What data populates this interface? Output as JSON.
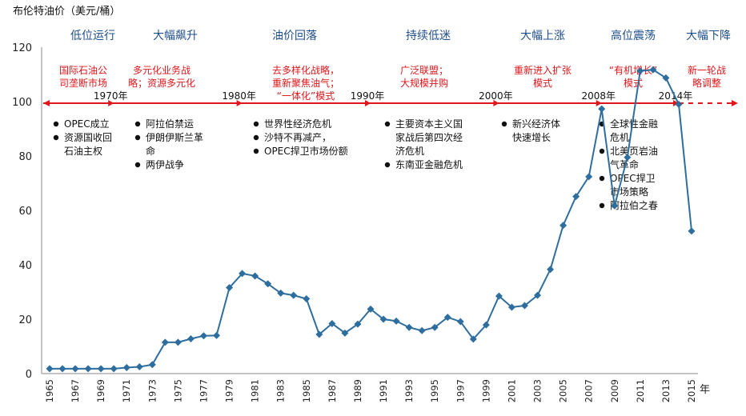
{
  "chart_data": {
    "type": "line",
    "title": "布伦特油价（美元/桶）",
    "x_unit": "年",
    "ylim": [
      0,
      120
    ],
    "yticks": [
      0,
      20,
      40,
      60,
      80,
      100,
      120
    ],
    "x_tick_labels": [
      "1965",
      "1967",
      "1969",
      "1971",
      "1973",
      "1975",
      "1977",
      "1979",
      "1981",
      "1983",
      "1985",
      "1987",
      "1989",
      "1991",
      "1993",
      "1995",
      "1997",
      "1999",
      "2001",
      "2003",
      "2005",
      "2007",
      "2009",
      "2011",
      "2013",
      "2015"
    ],
    "x": [
      1965,
      1966,
      1967,
      1968,
      1969,
      1970,
      1971,
      1972,
      1973,
      1974,
      1975,
      1976,
      1977,
      1978,
      1979,
      1980,
      1981,
      1982,
      1983,
      1984,
      1985,
      1986,
      1987,
      1988,
      1989,
      1990,
      1991,
      1992,
      1993,
      1994,
      1995,
      1996,
      1997,
      1998,
      1999,
      2000,
      2001,
      2002,
      2003,
      2004,
      2005,
      2006,
      2007,
      2008,
      2009,
      2010,
      2011,
      2012,
      2013,
      2014,
      2015
    ],
    "y": [
      1.8,
      1.8,
      1.8,
      1.8,
      1.8,
      1.8,
      2.2,
      2.5,
      3.3,
      11.5,
      11.5,
      12.8,
      13.9,
      14.0,
      31.6,
      36.8,
      35.9,
      33.0,
      29.6,
      28.8,
      27.5,
      14.4,
      18.4,
      14.9,
      18.2,
      23.7,
      20.0,
      19.3,
      17.0,
      15.8,
      17.0,
      20.7,
      19.1,
      12.7,
      17.9,
      28.5,
      24.4,
      25.0,
      28.8,
      38.3,
      54.5,
      65.1,
      72.4,
      97.3,
      61.7,
      79.5,
      111.3,
      111.7,
      108.7,
      99.0,
      52.4
    ],
    "grid": false,
    "line_color": "#2e6e9e",
    "timeline_color": "#e0161b",
    "phase_color": "#1f4e8c",
    "timeline_markers": [
      {
        "label": "1970年",
        "year": 1970
      },
      {
        "label": "1980年",
        "year": 1980
      },
      {
        "label": "1990年",
        "year": 1990
      },
      {
        "label": "2000年",
        "year": 2000
      },
      {
        "label": "2008年",
        "year": 2008
      },
      {
        "label": "2014年",
        "year": 2014
      }
    ],
    "phases": [
      {
        "name": "低位运行",
        "strategy": [
          "国际石油公",
          "司垄断市场"
        ],
        "events": [
          "OPEC成立",
          "资源国收回",
          "石油主权"
        ]
      },
      {
        "name": "大幅飙升",
        "strategy": [
          "多元化业务战",
          "略；资源多元化"
        ],
        "events": [
          "阿拉伯禁运",
          "伊朗伊斯兰革",
          "命",
          "两伊战争"
        ]
      },
      {
        "name": "油价回落",
        "strategy": [
          "去多样化战略，",
          "重新聚焦油气；",
          "“一体化”模式"
        ],
        "events": [
          "世界性经济危机",
          "沙特不再减产，",
          "OPEC捍卫市场份额"
        ]
      },
      {
        "name": "持续低迷",
        "strategy": [
          "广泛联盟；",
          "大规模并购"
        ],
        "events": [
          "主要资本主义国",
          "家战后第四次经",
          "济危机",
          "东南亚金融危机"
        ]
      },
      {
        "name": "大幅上涨",
        "strategy": [
          "重新进入扩张",
          "模式"
        ],
        "events": [
          "新兴经济体",
          "快速增长"
        ]
      },
      {
        "name": "高位震荡",
        "strategy": [
          "“有机增长”",
          "模式"
        ],
        "events": [
          "全球性金融",
          "危机",
          "北美页岩油",
          "气革命",
          "OPEC捍卫",
          "市场策略",
          "阿拉伯之春"
        ]
      },
      {
        "name": "大幅下降",
        "strategy": [
          "新一轮战",
          "略调整"
        ],
        "events": []
      }
    ]
  }
}
